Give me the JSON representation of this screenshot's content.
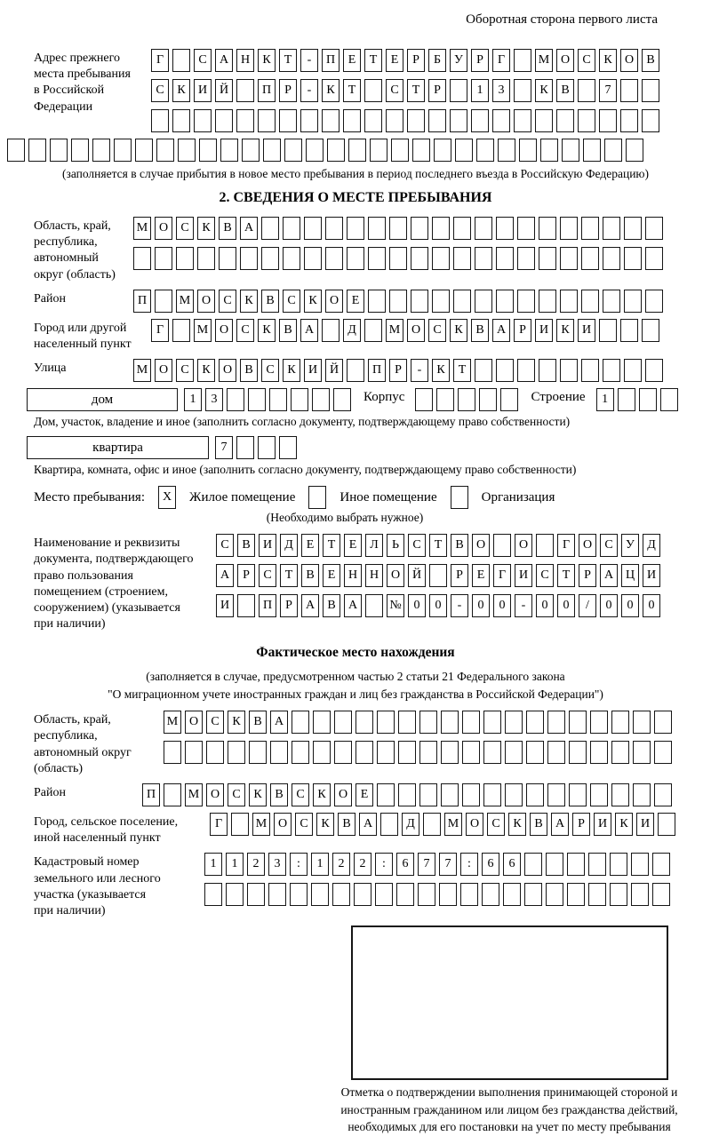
{
  "page": {
    "header_note": "Оборотная сторона первого листа"
  },
  "prev_address": {
    "label": "Адрес прежнего\nместа пребывания\nв Российской\nФедерации",
    "rows": [
      {
        "cells": 24,
        "text": "Г САНКТ-ПЕТЕРБУРГ МОСКОВ"
      },
      {
        "cells": 24,
        "text": "СКИЙ ПР-КТ СТР 13 КВ 7"
      },
      {
        "cells": 24,
        "text": ""
      }
    ],
    "overflow_row": {
      "cells": 30,
      "text": ""
    },
    "note": "(заполняется в случае прибытия в новое место пребывания в период последнего въезда в Российскую Федерацию)"
  },
  "section2": {
    "title": "2. СВЕДЕНИЯ О МЕСТЕ ПРЕБЫВАНИЯ",
    "region": {
      "label": "Область, край,\nреспублика,\nавтономный\nокруг (область)",
      "rows": [
        {
          "cells": 25,
          "text": "МОСКВА"
        },
        {
          "cells": 25,
          "text": ""
        }
      ]
    },
    "district": {
      "label": "Район",
      "row": {
        "cells": 25,
        "text": "П МОСКВСКОЕ"
      }
    },
    "city": {
      "label": "Город или другой\nнаселенный пункт",
      "row": {
        "cells": 24,
        "text": "Г МОСКВА Д МОСКВАРИКИ"
      }
    },
    "street": {
      "label": "Улица",
      "row": {
        "cells": 25,
        "text": "МОСКОВСКИЙ ПР-КТ"
      }
    },
    "house": {
      "box_label": "дом",
      "number_row": {
        "cells": 8,
        "text": "13"
      },
      "korpus_label": "Корпус",
      "korpus_row": {
        "cells": 5,
        "text": ""
      },
      "stroenie_label": "Строение",
      "stroenie_row": {
        "cells": 4,
        "text": "1"
      }
    },
    "house_note": "Дом, участок, владение и иное (заполнить согласно документу, подтверждающему право собственности)",
    "apartment": {
      "box_label": "квартира",
      "number_row": {
        "cells": 4,
        "text": "7"
      }
    },
    "apartment_note": "Квартира, комната, офис и иное (заполнить согласно документу, подтверждающему право собственности)",
    "stay": {
      "label": "Место пребывания:",
      "options": [
        {
          "label": "Жилое помещение",
          "box": {
            "cells": 1,
            "text": "X"
          }
        },
        {
          "label": "Иное помещение",
          "box": {
            "cells": 1,
            "text": ""
          }
        },
        {
          "label": "Организация",
          "box": {
            "cells": 1,
            "text": ""
          }
        }
      ],
      "note": "(Необходимо выбрать нужное)"
    },
    "document": {
      "label": "Наименование и реквизиты\nдокумента, подтверждающего\nправо пользования\nпомещением (строением,\nсооружением) (указывается\nпри наличии)",
      "rows": [
        {
          "cells": 21,
          "text": "СВИДЕТЕЛЬСТВО О ГОСУД"
        },
        {
          "cells": 21,
          "text": "АРСТВЕННОЙ РЕГИСТРАЦИ"
        },
        {
          "cells": 21,
          "text": "И ПРАВА №00-00-00/000"
        }
      ]
    }
  },
  "actual": {
    "title": "Фактическое место нахождения",
    "note1": "(заполняется в случае, предусмотренном частью 2 статьи 21 Федерального закона",
    "note2": "\"О миграционном учете иностранных граждан и лиц без гражданства в Российской Федерации\")",
    "region": {
      "label": "Область, край,\nреспублика,\nавтономный округ\n(область)",
      "rows": [
        {
          "cells": 24,
          "text": "МОСКВА"
        },
        {
          "cells": 24,
          "text": ""
        }
      ]
    },
    "district": {
      "label": "Район",
      "row": {
        "cells": 25,
        "text": "П МОСКВСКОЕ"
      }
    },
    "city": {
      "label": "Город, сельское поселение,\nиной населенный пункт",
      "row": {
        "cells": 22,
        "text": "Г МОСКВА Д МОСКВАРИКИ"
      }
    },
    "cadastre": {
      "label": "Кадастровый номер\nземельного или лесного\nучастка (указывается\nпри наличии)",
      "rows": [
        {
          "cells": 22,
          "text": "1123:122:677:66"
        },
        {
          "cells": 22,
          "text": ""
        }
      ]
    }
  },
  "confirmation": {
    "caption": "Отметка о подтверждении выполнения принимающей стороной и иностранным гражданином или лицом без гражданства действий, необходимых для его постановки на учет по месту пребывания"
  }
}
